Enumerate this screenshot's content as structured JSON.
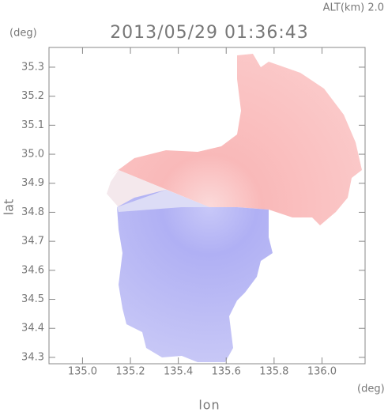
{
  "chart_data": {
    "type": "radar-field",
    "title": "2013/05/29 01:36:43",
    "subtitle": "ALT(km) 2.0",
    "xlabel": "lon",
    "ylabel": "lat",
    "xunit": "(deg)",
    "yunit": "(deg)",
    "xlim": [
      134.86,
      136.18
    ],
    "ylim": [
      34.278,
      35.368
    ],
    "xticks": [
      {
        "value": 135.0,
        "label": "135.0"
      },
      135.2,
      135.4,
      135.6,
      135.8,
      {
        "value": 136.0,
        "label": "136.0"
      }
    ],
    "yticks": [
      34.3,
      34.4,
      34.5,
      34.6,
      34.7,
      34.8,
      34.9,
      {
        "value": 35.0,
        "label": "35.0"
      },
      35.1,
      35.2,
      35.3
    ]
  }
}
